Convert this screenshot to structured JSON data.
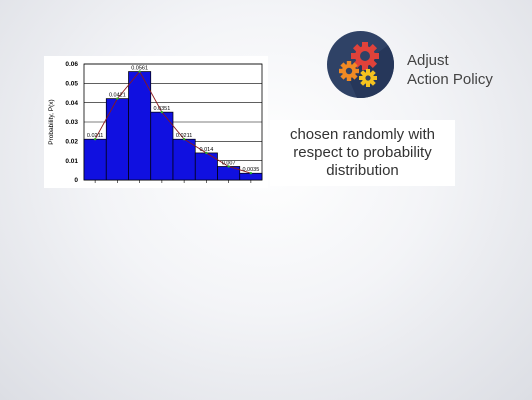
{
  "badge": {
    "line1": "Adjust",
    "line2": "Action Policy",
    "icon": "gears-icon"
  },
  "caption": {
    "text": "chosen randomly with respect to probability distribution"
  },
  "chart_data": {
    "type": "bar",
    "title": "",
    "xlabel": "",
    "ylabel": "Probability, P(x)",
    "ylim": [
      0,
      0.06
    ],
    "yticks": [
      "0",
      "0.01",
      "0.02",
      "0.03",
      "0.04",
      "0.05",
      "0.06"
    ],
    "grid": true,
    "values": [
      0.0211,
      0.0421,
      0.0561,
      0.0351,
      0.0211,
      0.014,
      0.007,
      0.0035
    ],
    "labels": [
      "0.0211",
      "0.0421",
      "0.0561",
      "0.0351",
      "0.0211",
      "0.014",
      "0.007",
      "0.0035"
    ],
    "colors": {
      "bar": "#1010e0",
      "bar_stroke": "#000000",
      "line": "#8b1a1a"
    }
  }
}
